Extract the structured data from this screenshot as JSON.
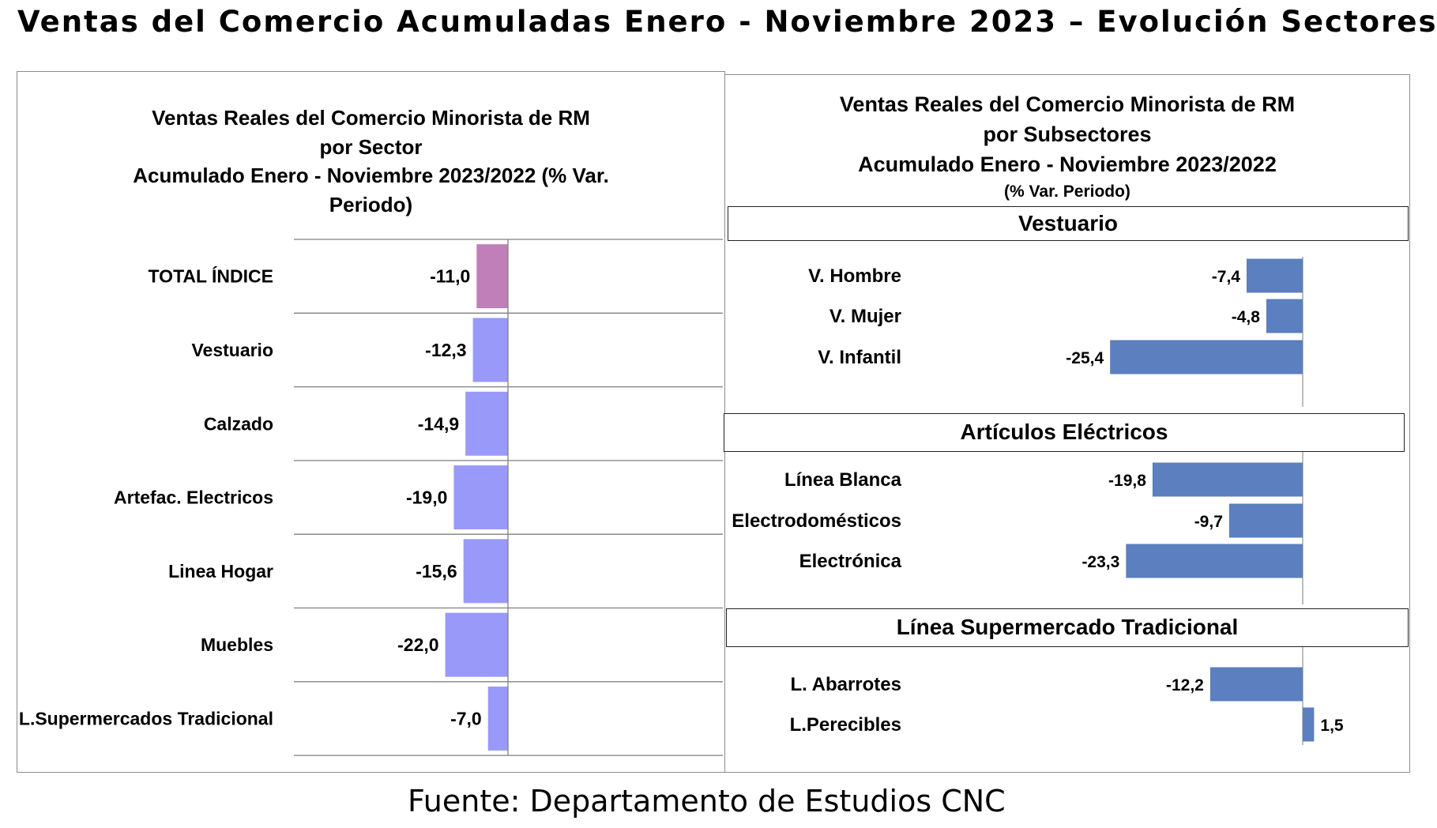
{
  "page_title": "Ventas del Comercio Acumuladas Enero - Noviembre 2023 – Evolución Sectores",
  "source_note": "Fuente: Departamento de Estudios CNC",
  "left_chart": {
    "title_lines": [
      "Ventas Reales del Comercio Minorista de RM",
      "por Sector",
      "Acumulado Enero - Noviembre 2023/2022 (% Var.",
      "Periodo)"
    ]
  },
  "right_chart": {
    "title_lines": [
      "Ventas Reales del Comercio Minorista de RM",
      "por Subsectores",
      "Acumulado Enero - Noviembre 2023/2022"
    ],
    "subtitle": "(% Var. Periodo)",
    "groups": [
      "Vestuario",
      "Artículos Eléctricos",
      "Línea  Supermercado Tradicional"
    ]
  },
  "colors": {
    "total_bar": "#C07FB8",
    "sector_bar": "#9999FA",
    "subsector_bar": "#5B7FBF"
  },
  "chart_data": [
    {
      "type": "bar",
      "orientation": "horizontal",
      "categories": [
        "TOTAL ÍNDICE",
        "Vestuario",
        "Calzado",
        "Artefac. Electricos",
        "Linea Hogar",
        "Muebles",
        "L.Supermercados Tradicional"
      ],
      "values": [
        -11.0,
        -12.3,
        -14.9,
        -19.0,
        -15.6,
        -22.0,
        -7.0
      ],
      "labels": [
        "-11,0",
        "-12,3",
        "-14,9",
        "-19,0",
        "-15,6",
        "-22,0",
        "-7,0"
      ],
      "title": "Ventas Reales del Comercio Minorista de RM por Sector Acumulado Enero - Noviembre 2023/2022 (% Var. Periodo)",
      "grid": true
    },
    {
      "type": "bar",
      "orientation": "horizontal",
      "categories": [
        "V. Hombre",
        "V. Mujer",
        "V. Infantil",
        "Línea Blanca",
        "Electrodomésticos",
        "Electrónica",
        "L. Abarrotes",
        "L.Perecibles"
      ],
      "group_of": [
        "Vestuario",
        "Vestuario",
        "Vestuario",
        "Artículos Eléctricos",
        "Artículos Eléctricos",
        "Artículos Eléctricos",
        "Línea  Supermercado Tradicional",
        "Línea  Supermercado Tradicional"
      ],
      "values": [
        -7.4,
        -4.8,
        -25.4,
        -19.8,
        -9.7,
        -23.3,
        -12.2,
        1.5
      ],
      "labels": [
        "-7,4",
        "-4,8",
        "-25,4",
        "-19,8",
        "-9,7",
        "-23,3",
        "-12,2",
        "1,5"
      ],
      "title": "Ventas Reales del Comercio Minorista de RM por Subsectores Acumulado Enero - Noviembre 2023/2022 (% Var. Periodo)"
    }
  ]
}
